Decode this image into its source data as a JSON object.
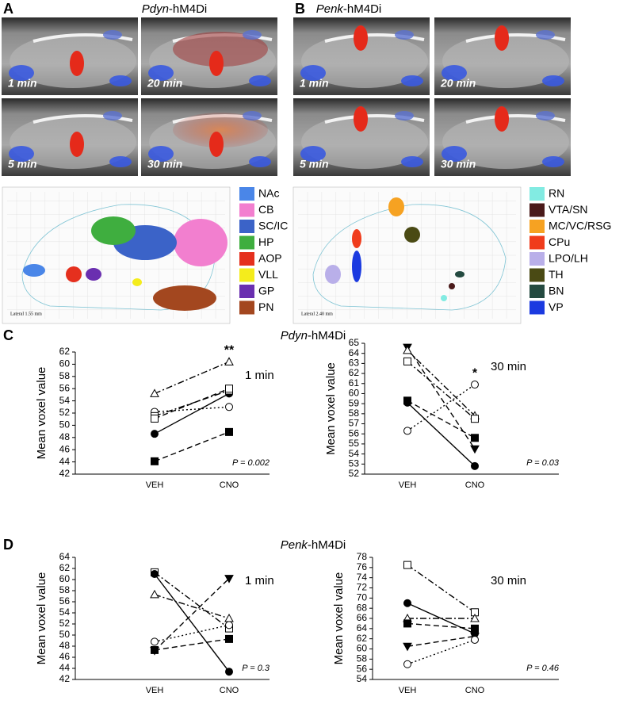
{
  "panel_a": {
    "letter": "A",
    "gene": "Pdyn",
    "suffix": "-hM4Di",
    "images": [
      "1 min",
      "20 min",
      "5 min",
      "30 min"
    ],
    "atlas_label": "Lateral 1.55 mm",
    "legend": [
      {
        "label": "NAc",
        "color": "#4a86e8"
      },
      {
        "label": "CB",
        "color": "#f27fcf"
      },
      {
        "label": "SC/IC",
        "color": "#3b63c8"
      },
      {
        "label": "HP",
        "color": "#3fae3f"
      },
      {
        "label": "AOP",
        "color": "#e5301e"
      },
      {
        "label": "VLL",
        "color": "#f4ec1c"
      },
      {
        "label": "GP",
        "color": "#6a2fb0"
      },
      {
        "label": "PN",
        "color": "#a3471f"
      }
    ]
  },
  "panel_b": {
    "letter": "B",
    "gene": "Penk",
    "suffix": "-hM4Di",
    "images": [
      "1 min",
      "20 min",
      "5 min",
      "30 min"
    ],
    "atlas_label": "Lateral 2.40 mm",
    "legend": [
      {
        "label": "RN",
        "color": "#82ebe2"
      },
      {
        "label": "VTA/SN",
        "color": "#4a1a1a"
      },
      {
        "label": "MC/VC/RSG",
        "color": "#f6a222"
      },
      {
        "label": "CPu",
        "color": "#f03c1c"
      },
      {
        "label": "LPO/LH",
        "color": "#b9afe9"
      },
      {
        "label": "TH",
        "color": "#4a4a14"
      },
      {
        "label": "BN",
        "color": "#244a40"
      },
      {
        "label": "VP",
        "color": "#1b3ae0"
      }
    ]
  },
  "panel_c": {
    "letter": "C",
    "gene": "Pdyn",
    "suffix": "-hM4Di"
  },
  "panel_d": {
    "letter": "D",
    "gene": "Penk",
    "suffix": "-hM4Di"
  },
  "chart_data": [
    {
      "type": "line",
      "categories": [
        "VEH",
        "CNO"
      ],
      "ylabel": "Mean voxel value",
      "annotation": "1 min",
      "stat_label": "P = 0.002",
      "significance": "**",
      "ylim": [
        42,
        62
      ],
      "yticks": [
        42,
        44,
        46,
        48,
        50,
        52,
        54,
        56,
        58,
        60,
        62
      ],
      "series": [
        {
          "marker": "filled-circle",
          "dash": "solid",
          "values": [
            48.6,
            55.2
          ]
        },
        {
          "marker": "open-triangle",
          "dash": "dashdot",
          "values": [
            55.2,
            60.4
          ]
        },
        {
          "marker": "open-circle",
          "dash": "dotted",
          "values": [
            52.2,
            53.0
          ]
        },
        {
          "marker": "open-square",
          "dash": "dashdot",
          "values": [
            51.5,
            55.7
          ]
        },
        {
          "marker": "open-square",
          "dash": "dashed",
          "values": [
            51.1,
            56.0
          ]
        },
        {
          "marker": "filled-square",
          "dash": "dashed",
          "values": [
            44.1,
            48.9
          ]
        }
      ]
    },
    {
      "type": "line",
      "categories": [
        "VEH",
        "CNO"
      ],
      "ylabel": "Mean voxel value",
      "annotation": "30 min",
      "stat_label": "P = 0.03",
      "significance": "*",
      "ylim": [
        52,
        65
      ],
      "yticks": [
        52,
        53,
        54,
        55,
        56,
        57,
        58,
        59,
        60,
        61,
        62,
        63,
        64,
        65
      ],
      "series": [
        {
          "marker": "filled-triangle-down",
          "dash": "dashed",
          "values": [
            64.6,
            54.5
          ]
        },
        {
          "marker": "open-triangle",
          "dash": "dashdot",
          "values": [
            64.3,
            57.8
          ]
        },
        {
          "marker": "open-square",
          "dash": "dashdot",
          "values": [
            63.2,
            57.5
          ]
        },
        {
          "marker": "filled-square",
          "dash": "dashed",
          "values": [
            59.3,
            55.6
          ]
        },
        {
          "marker": "filled-circle",
          "dash": "solid",
          "values": [
            59.1,
            52.8
          ]
        },
        {
          "marker": "open-circle",
          "dash": "dotted",
          "values": [
            56.3,
            60.9
          ]
        }
      ]
    },
    {
      "type": "line",
      "categories": [
        "VEH",
        "CNO"
      ],
      "ylabel": "Mean voxel value",
      "annotation": "1 min",
      "stat_label": "P = 0.3",
      "ylim": [
        42,
        64
      ],
      "yticks": [
        42,
        44,
        46,
        48,
        50,
        52,
        54,
        56,
        58,
        60,
        62,
        64
      ],
      "series": [
        {
          "marker": "open-square",
          "dash": "dashdot",
          "values": [
            61.3,
            51.2
          ]
        },
        {
          "marker": "filled-circle",
          "dash": "solid",
          "values": [
            61.0,
            43.4
          ]
        },
        {
          "marker": "open-triangle",
          "dash": "dashdot",
          "values": [
            57.3,
            53.0
          ]
        },
        {
          "marker": "open-circle",
          "dash": "dotted",
          "values": [
            48.8,
            51.8
          ]
        },
        {
          "marker": "filled-square",
          "dash": "dashed",
          "values": [
            47.3,
            49.3
          ]
        },
        {
          "marker": "filled-triangle-down",
          "dash": "dashed",
          "values": [
            47.2,
            60.2
          ]
        }
      ]
    },
    {
      "type": "line",
      "categories": [
        "VEH",
        "CNO"
      ],
      "ylabel": "Mean voxel value",
      "annotation": "30 min",
      "stat_label": "P = 0.46",
      "ylim": [
        54,
        78
      ],
      "yticks": [
        54,
        56,
        58,
        60,
        62,
        64,
        66,
        68,
        70,
        72,
        74,
        76,
        78
      ],
      "series": [
        {
          "marker": "open-square",
          "dash": "dashdot",
          "values": [
            76.5,
            67.2
          ]
        },
        {
          "marker": "filled-circle",
          "dash": "solid",
          "values": [
            69.0,
            63.0
          ]
        },
        {
          "marker": "open-triangle",
          "dash": "dashdot",
          "values": [
            66.0,
            66.0
          ]
        },
        {
          "marker": "filled-square",
          "dash": "dashed",
          "values": [
            65.0,
            64.0
          ]
        },
        {
          "marker": "filled-triangle-down",
          "dash": "dashed",
          "values": [
            60.5,
            62.5
          ]
        },
        {
          "marker": "open-circle",
          "dash": "dotted",
          "values": [
            57.0,
            61.8
          ]
        }
      ]
    }
  ]
}
